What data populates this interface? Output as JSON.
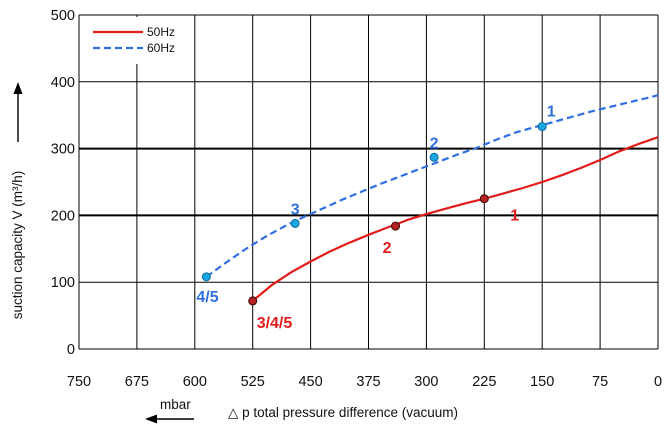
{
  "chart_data": {
    "type": "line",
    "x_axis": {
      "label": "△ p total pressure difference (vacuum)",
      "unit": "mbar",
      "ticks": [
        "750",
        "675",
        "600",
        "525",
        "450",
        "375",
        "300",
        "225",
        "150",
        "75",
        "0"
      ],
      "range": [
        750,
        0
      ],
      "reversed": true
    },
    "y_axis": {
      "label": "suction capacity V (m³/h)",
      "ticks": [
        "0",
        "100",
        "200",
        "300",
        "400",
        "500"
      ],
      "range": [
        0,
        500
      ]
    },
    "grid": true,
    "legend_position": "top-left",
    "series": [
      {
        "name": "50Hz",
        "color": "#e31b1b",
        "dash": "solid",
        "x": [
          525,
          500,
          475,
          450,
          425,
          400,
          375,
          350,
          325,
          300,
          275,
          250,
          225,
          200,
          175,
          150,
          125,
          100,
          75,
          50,
          25,
          0
        ],
        "y": [
          72,
          96,
          115,
          131,
          146,
          159,
          171,
          182,
          193,
          202,
          210,
          218,
          225,
          233,
          241,
          250,
          260,
          271,
          283,
          296,
          307,
          317
        ],
        "points": [
          {
            "x": 525,
            "y": 72,
            "label": "3/4/5"
          },
          {
            "x": 340,
            "y": 184,
            "label": "2"
          },
          {
            "x": 225,
            "y": 225,
            "label": "1"
          }
        ]
      },
      {
        "name": "60Hz",
        "color": "#2f6fe0",
        "dash": "dashed",
        "x": [
          585,
          560,
          535,
          510,
          485,
          460,
          435,
          410,
          385,
          360,
          335,
          310,
          285,
          260,
          235,
          210,
          185,
          160,
          135,
          110,
          85,
          60,
          35,
          10,
          0
        ],
        "y": [
          108,
          129,
          149,
          167,
          183,
          197,
          210,
          223,
          235,
          247,
          258,
          269,
          280,
          291,
          301,
          313,
          324,
          332,
          340,
          348,
          356,
          363,
          370,
          377,
          380
        ],
        "points": [
          {
            "x": 585,
            "y": 108,
            "label": "4/5"
          },
          {
            "x": 470,
            "y": 188,
            "label": "3"
          },
          {
            "x": 290,
            "y": 287,
            "label": "2"
          },
          {
            "x": 150,
            "y": 333,
            "label": "1"
          }
        ]
      }
    ]
  }
}
